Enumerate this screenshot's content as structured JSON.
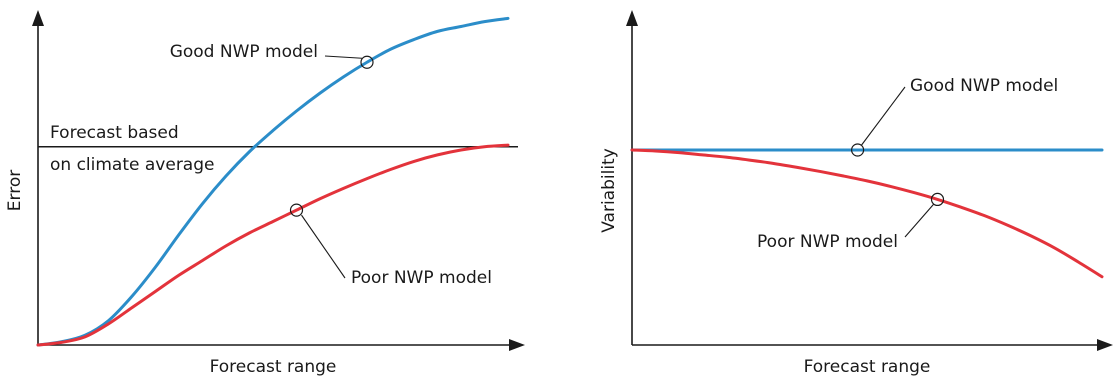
{
  "chart_data": [
    {
      "type": "line",
      "title": "",
      "xlabel": "Forecast range",
      "ylabel": "Error",
      "xlim": [
        0,
        100
      ],
      "ylim": [
        0,
        100
      ],
      "grid": false,
      "reference_line": {
        "value": 61,
        "label_lines": [
          "Forecast based",
          "on climate average"
        ]
      },
      "series": [
        {
          "label": "Good NWP model",
          "color": "#2b8dc9",
          "marker_index": 14,
          "points": [
            [
              0,
              0
            ],
            [
              5,
              1
            ],
            [
              10,
              3
            ],
            [
              15,
              7.5
            ],
            [
              20,
              15
            ],
            [
              25,
              24
            ],
            [
              30,
              34
            ],
            [
              35,
              43.5
            ],
            [
              40,
              52
            ],
            [
              45,
              59.5
            ],
            [
              50,
              66
            ],
            [
              55,
              72
            ],
            [
              60,
              77.5
            ],
            [
              65,
              82.5
            ],
            [
              70,
              87
            ],
            [
              75,
              91
            ],
            [
              80,
              94
            ],
            [
              85,
              96.5
            ],
            [
              90,
              98
            ],
            [
              95,
              99.5
            ],
            [
              100,
              100.5
            ]
          ]
        },
        {
          "label": "Poor NWP model",
          "color": "#e3333b",
          "marker_index": 11,
          "points": [
            [
              0,
              0
            ],
            [
              5,
              0.8
            ],
            [
              10,
              2.5
            ],
            [
              15,
              6.5
            ],
            [
              20,
              11.5
            ],
            [
              25,
              16.5
            ],
            [
              30,
              21.5
            ],
            [
              35,
              26
            ],
            [
              40,
              30.5
            ],
            [
              45,
              34.5
            ],
            [
              50,
              38
            ],
            [
              55,
              41.5
            ],
            [
              60,
              45
            ],
            [
              65,
              48.2
            ],
            [
              70,
              51.2
            ],
            [
              75,
              54
            ],
            [
              80,
              56.5
            ],
            [
              85,
              58.5
            ],
            [
              90,
              60
            ],
            [
              95,
              61
            ],
            [
              100,
              61.5
            ]
          ]
        }
      ]
    },
    {
      "type": "line",
      "title": "",
      "xlabel": "Forecast range",
      "ylabel": "Variability",
      "xlim": [
        0,
        100
      ],
      "ylim": [
        0,
        100
      ],
      "grid": false,
      "series": [
        {
          "label": "Good NWP model",
          "color": "#2b8dc9",
          "marker_index": 1,
          "points": [
            [
              0,
              60
            ],
            [
              48,
              60
            ],
            [
              100,
              60
            ]
          ]
        },
        {
          "label": "Poor NWP model",
          "color": "#e3333b",
          "marker_index": 13,
          "points": [
            [
              0,
              60
            ],
            [
              5,
              59.7
            ],
            [
              10,
              59.2
            ],
            [
              15,
              58.5
            ],
            [
              20,
              57.8
            ],
            [
              25,
              56.9
            ],
            [
              30,
              55.9
            ],
            [
              35,
              54.7
            ],
            [
              40,
              53.4
            ],
            [
              45,
              52
            ],
            [
              50,
              50.5
            ],
            [
              55,
              48.8
            ],
            [
              60,
              46.9
            ],
            [
              65,
              44.8
            ],
            [
              70,
              42.4
            ],
            [
              75,
              39.8
            ],
            [
              80,
              36.8
            ],
            [
              85,
              33.5
            ],
            [
              90,
              29.8
            ],
            [
              95,
              25.5
            ],
            [
              100,
              21
            ]
          ]
        }
      ]
    }
  ]
}
